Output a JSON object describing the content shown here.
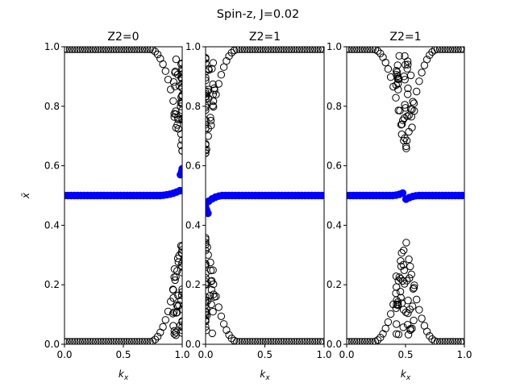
{
  "suptitle": "Spin-z, J=0.02",
  "chart_data": [
    {
      "type": "scatter",
      "title": "Z2=0",
      "xlabel": "k_x",
      "ylabel": "x̄",
      "xlim": [
        0,
        1
      ],
      "ylim": [
        0,
        1
      ],
      "xticks": [
        "0.0",
        "0.5",
        "1.0"
      ],
      "yticks": [
        "0.0",
        "0.2",
        "0.4",
        "0.6",
        "0.8",
        "1.0"
      ],
      "series": [
        {
          "marker": "open-circle",
          "color": "#000000",
          "pattern": "edge-top",
          "crossing": 1.0
        },
        {
          "marker": "open-circle",
          "color": "#000000",
          "pattern": "edge-bottom",
          "crossing": 1.0
        },
        {
          "marker": "filled-circle",
          "color": "#0000ff",
          "pattern": "center-rise-right",
          "crossing": 1.0
        }
      ]
    },
    {
      "type": "scatter",
      "title": "Z2=1",
      "xlabel": "k_x",
      "ylabel": "",
      "xlim": [
        0,
        1
      ],
      "ylim": [
        0,
        1
      ],
      "xticks": [
        "0.0",
        "0.5",
        "1.0"
      ],
      "yticks": [
        "0.0",
        "0.2",
        "0.4",
        "0.6",
        "0.8",
        "1.0"
      ],
      "series": [
        {
          "marker": "open-circle",
          "color": "#000000",
          "pattern": "edge-top",
          "crossing": 0.0
        },
        {
          "marker": "open-circle",
          "color": "#000000",
          "pattern": "edge-bottom",
          "crossing": 0.0
        },
        {
          "marker": "filled-circle",
          "color": "#0000ff",
          "pattern": "center-rise-left",
          "crossing": 0.0
        }
      ]
    },
    {
      "type": "scatter",
      "title": "Z2=1",
      "xlabel": "k_x",
      "ylabel": "",
      "xlim": [
        0,
        1
      ],
      "ylim": [
        0,
        1
      ],
      "xticks": [
        "0.0",
        "0.5",
        "1.0"
      ],
      "yticks": [
        "0.0",
        "0.2",
        "0.4",
        "0.6",
        "0.8",
        "1.0"
      ],
      "series": [
        {
          "marker": "open-circle",
          "color": "#000000",
          "pattern": "edge-top",
          "crossing": 0.5
        },
        {
          "marker": "open-circle",
          "color": "#000000",
          "pattern": "edge-bottom",
          "crossing": 0.5
        },
        {
          "marker": "filled-circle",
          "color": "#0000ff",
          "pattern": "center-jump",
          "crossing": 0.5
        }
      ]
    }
  ]
}
